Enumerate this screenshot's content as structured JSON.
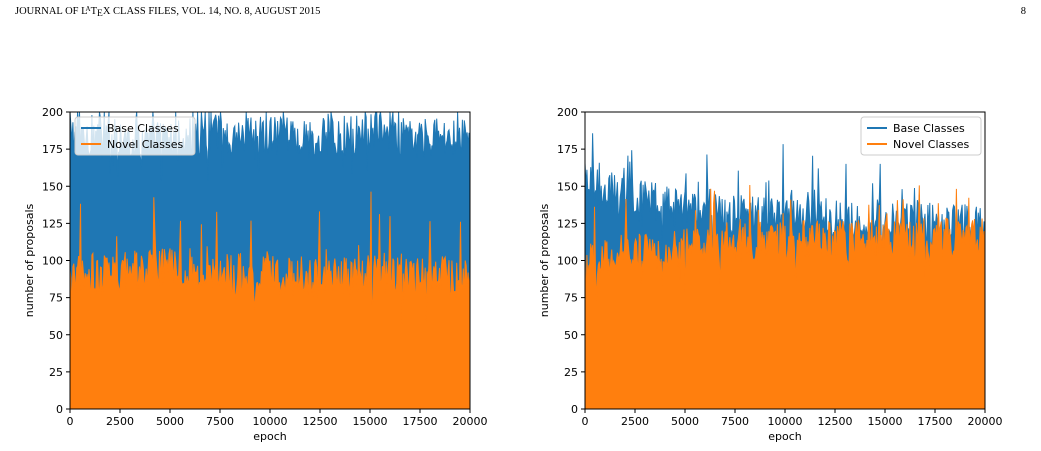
{
  "header": {
    "left_pre": "JOURNAL OF L",
    "left_a": "A",
    "left_t": "T",
    "left_e": "E",
    "left_post": "X CLASS FILES, VOL. 14, NO. 8, AUGUST 2015",
    "page_number": "8"
  },
  "colors": {
    "base": "#1f77b4",
    "novel": "#ff7f0e"
  },
  "chart_data": [
    {
      "type": "area",
      "xlabel": "epoch",
      "ylabel": "number of proposals",
      "xlim": [
        0,
        20000
      ],
      "ylim": [
        0,
        200
      ],
      "xticks": [
        "0",
        "2500",
        "5000",
        "7500",
        "10000",
        "12500",
        "15000",
        "17500",
        "20000"
      ],
      "yticks": [
        "0",
        "25",
        "50",
        "75",
        "100",
        "125",
        "150",
        "175",
        "200"
      ],
      "legend_position": "top-left",
      "series": [
        {
          "name": "Base Classes",
          "color": "#1f77b4",
          "x": [
            0,
            2500,
            5000,
            7500,
            10000,
            12500,
            15000,
            17500,
            20000
          ],
          "values": [
            185,
            182,
            180,
            185,
            183,
            182,
            185,
            182,
            185
          ]
        },
        {
          "name": "Novel Classes",
          "color": "#ff7f0e",
          "x": [
            0,
            2500,
            5000,
            7500,
            10000,
            12500,
            15000,
            17500,
            20000
          ],
          "values": [
            90,
            92,
            95,
            92,
            90,
            88,
            92,
            90,
            88
          ]
        }
      ]
    },
    {
      "type": "area",
      "xlabel": "epoch",
      "ylabel": "number of proposals",
      "xlim": [
        0,
        20000
      ],
      "ylim": [
        0,
        200
      ],
      "xticks": [
        "0",
        "2500",
        "5000",
        "7500",
        "10000",
        "12500",
        "15000",
        "17500",
        "20000"
      ],
      "yticks": [
        "0",
        "25",
        "50",
        "75",
        "100",
        "125",
        "150",
        "175",
        "200"
      ],
      "legend_position": "top-right",
      "series": [
        {
          "name": "Base Classes",
          "color": "#1f77b4",
          "x": [
            0,
            2500,
            5000,
            7500,
            10000,
            12500,
            15000,
            17500,
            20000
          ],
          "values": [
            150,
            142,
            135,
            130,
            130,
            128,
            128,
            127,
            125
          ]
        },
        {
          "name": "Novel Classes",
          "color": "#ff7f0e",
          "x": [
            0,
            2500,
            5000,
            7500,
            10000,
            12500,
            15000,
            17500,
            20000
          ],
          "values": [
            100,
            105,
            110,
            112,
            113,
            113,
            114,
            115,
            115
          ]
        }
      ]
    }
  ]
}
